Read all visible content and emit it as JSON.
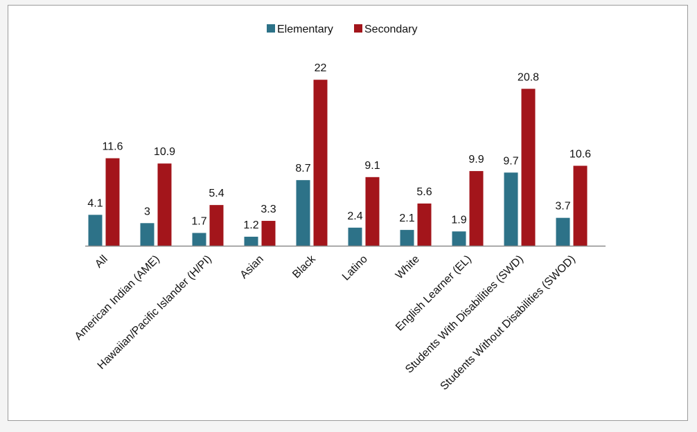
{
  "colors": {
    "elementary": "#2d7288",
    "secondary": "#a3151b",
    "axis": "#8c8c8c"
  },
  "chart_data": {
    "type": "bar",
    "title": "",
    "xlabel": "",
    "ylabel": "",
    "ylim": [
      0,
      22
    ],
    "grid": false,
    "legend_position": "top-center",
    "categories": [
      "All",
      "American Indian (AME)",
      "Hawaiian/Pacific Islander (H/PI)",
      "Asian",
      "Black",
      "Latino",
      "White",
      "English Learner (EL)",
      "Students With Disabilities (SWD)",
      "Students Without Disabilities (SWOD)"
    ],
    "series": [
      {
        "name": "Elementary",
        "values": [
          4.1,
          3,
          1.7,
          1.2,
          8.7,
          2.4,
          2.1,
          1.9,
          9.7,
          3.7
        ],
        "labels": [
          "4.1",
          "3",
          "1.7",
          "1.2",
          "8.7",
          "2.4",
          "2.1",
          "1.9",
          "9.7",
          "3.7"
        ]
      },
      {
        "name": "Secondary",
        "values": [
          11.6,
          10.9,
          5.4,
          3.3,
          22,
          9.1,
          5.6,
          9.9,
          20.8,
          10.6
        ],
        "labels": [
          "11.6",
          "10.9",
          "5.4",
          "3.3",
          "22",
          "9.1",
          "5.6",
          "9.9",
          "20.8",
          "10.6"
        ]
      }
    ]
  }
}
